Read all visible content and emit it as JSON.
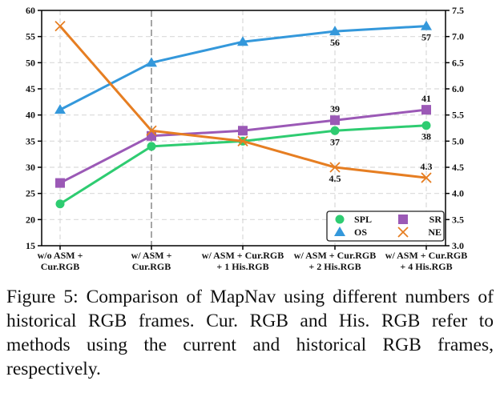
{
  "chart_data": {
    "type": "line",
    "title": "",
    "xlabel": "",
    "ylabel": "",
    "y2label": "",
    "categories": [
      [
        "w/o ASM +",
        "Cur.RGB"
      ],
      [
        "w/ ASM +",
        "Cur.RGB"
      ],
      [
        "w/ ASM + Cur.RGB",
        "+ 1 His.RGB"
      ],
      [
        "w/ ASM + Cur.RGB",
        "+ 2 His.RGB"
      ],
      [
        "w/ ASM + Cur.RGB",
        "+ 4 His.RGB"
      ]
    ],
    "ylim": [
      15,
      60
    ],
    "yticks": [
      15,
      20,
      25,
      30,
      35,
      40,
      45,
      50,
      55,
      60
    ],
    "y2lim": [
      3.0,
      7.5
    ],
    "y2ticks": [
      "3.0",
      "3.5",
      "4.0",
      "4.5",
      "5.0",
      "5.5",
      "6.0",
      "6.5",
      "7.0",
      "7.5"
    ],
    "grid": true,
    "highlighted_category_index": 1,
    "legend": {
      "placement": "bottom-right",
      "columns": 2
    },
    "series": [
      {
        "name": "SPL",
        "axis": "left",
        "marker": "circle",
        "color": "#2ecc71",
        "values": [
          23,
          34,
          35,
          37,
          38
        ],
        "labels": [
          null,
          null,
          null,
          {
            "text": "37",
            "pos": "below"
          },
          {
            "text": "38",
            "pos": "below"
          }
        ]
      },
      {
        "name": "OS",
        "axis": "left",
        "marker": "triangle",
        "color": "#3498db",
        "values": [
          41,
          50,
          54,
          56,
          57
        ],
        "labels": [
          null,
          null,
          null,
          {
            "text": "56",
            "pos": "below"
          },
          {
            "text": "57",
            "pos": "below"
          }
        ]
      },
      {
        "name": "SR",
        "axis": "left",
        "marker": "square",
        "color": "#9b59b6",
        "values": [
          27,
          36,
          37,
          39,
          41
        ],
        "labels": [
          null,
          null,
          null,
          {
            "text": "39",
            "pos": "above"
          },
          {
            "text": "41",
            "pos": "above"
          }
        ]
      },
      {
        "name": "NE",
        "axis": "right",
        "marker": "x",
        "color": "#e67e22",
        "values": [
          7.2,
          5.2,
          5.0,
          4.5,
          4.3
        ],
        "labels": [
          null,
          null,
          null,
          {
            "text": "4.5",
            "pos": "below"
          },
          {
            "text": "4.3",
            "pos": "above"
          }
        ]
      }
    ]
  },
  "caption": "Figure 5: Comparison of MapNav using different numbers of historical RGB frames. Cur. RGB and His. RGB refer to methods using the current and historical RGB frames, respectively."
}
